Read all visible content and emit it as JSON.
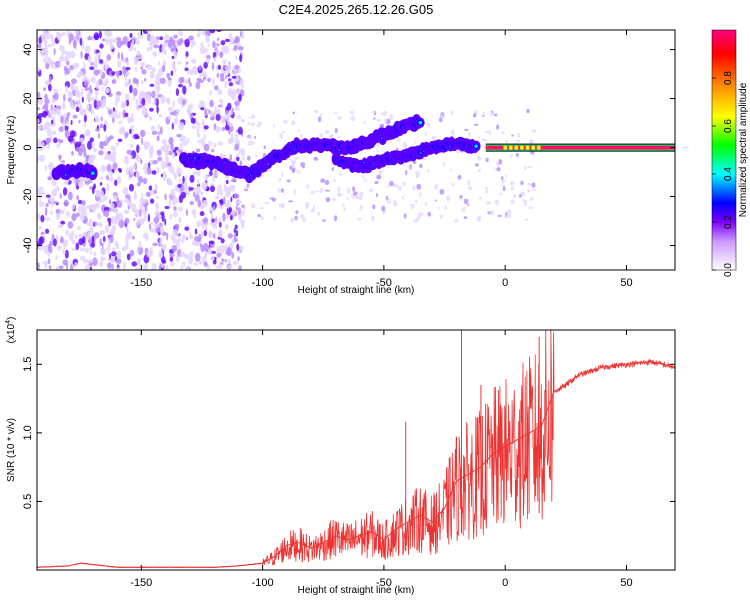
{
  "chart_data": [
    {
      "type": "heatmap",
      "title": "C2E4.2025.265.12.26.G05",
      "xlabel": "Height of straight line (km)",
      "ylabel": "Frequency (Hz)",
      "xlim": [
        -193,
        70
      ],
      "ylim": [
        -50,
        48
      ],
      "x_ticks": [
        -150,
        -100,
        -50,
        0,
        50
      ],
      "y_ticks": [
        -40,
        -20,
        0,
        20,
        40
      ],
      "colorbar": {
        "label": "Normalized spectral amplitude",
        "range": [
          0,
          1
        ],
        "ticks": [
          "0.0",
          "0.2",
          "0.4",
          "0.6",
          "0.8"
        ],
        "colors": [
          "#ffffff",
          "#cc99ff",
          "#7b00ff",
          "#0000ff",
          "#00ffff",
          "#00ff00",
          "#ffff00",
          "#ff8000",
          "#ff0000",
          "#ff0080"
        ]
      },
      "features": [
        {
          "name": "noise-scatter",
          "x_range": [
            -193,
            -108
          ],
          "y_range": [
            -50,
            48
          ]
        },
        {
          "name": "low-altitude-line",
          "x": [
            -185,
            -180,
            -175,
            -170
          ],
          "y": [
            -10,
            -10,
            -9,
            -10
          ]
        },
        {
          "name": "upper-branch",
          "x": [
            -133,
            -120,
            -105,
            -95,
            -85,
            -75,
            -65,
            -55,
            -45,
            -40,
            -35
          ],
          "y": [
            -5,
            -6,
            -11,
            -4,
            1,
            1,
            0,
            3,
            7,
            9,
            11
          ]
        },
        {
          "name": "lower-branch",
          "x": [
            -70,
            -60,
            -50,
            -40,
            -30,
            -20,
            -12
          ],
          "y": [
            -5,
            -8,
            -5,
            -3,
            0,
            2,
            0
          ]
        },
        {
          "name": "steady-carrier",
          "x": [
            -8,
            0,
            10,
            20,
            40,
            70
          ],
          "y": [
            0,
            0,
            0,
            0,
            0,
            0
          ]
        }
      ]
    },
    {
      "type": "line",
      "title": "",
      "xlabel": "Height of straight line (km)",
      "ylabel": "SNR (10 * v/v)",
      "scale_label": "(x10",
      "scale_exponent": "4",
      "scale_suffix": ")",
      "xlim": [
        -193,
        70
      ],
      "ylim": [
        0,
        1.75
      ],
      "x_ticks": [
        -150,
        -100,
        -50,
        0,
        50
      ],
      "y_ticks": [
        0.5,
        1.0,
        1.5
      ],
      "y_tick_labels": [
        "0.5",
        "1.0",
        "1.5"
      ],
      "color": "#ee3333",
      "series": [
        {
          "name": "SNR",
          "x": [
            -193,
            -180,
            -175,
            -160,
            -140,
            -120,
            -110,
            -100,
            -95,
            -90,
            -85,
            -80,
            -75,
            -70,
            -65,
            -60,
            -55,
            -50,
            -45,
            -40,
            -35,
            -30,
            -25,
            -20,
            -15,
            -10,
            -5,
            0,
            5,
            10,
            15,
            20,
            25,
            30,
            40,
            50,
            60,
            70
          ],
          "y": [
            0.02,
            0.03,
            0.05,
            0.02,
            0.02,
            0.02,
            0.03,
            0.05,
            0.1,
            0.18,
            0.2,
            0.16,
            0.2,
            0.25,
            0.22,
            0.25,
            0.28,
            0.22,
            0.3,
            0.35,
            0.4,
            0.35,
            0.45,
            0.65,
            0.7,
            0.75,
            0.85,
            0.9,
            0.95,
            1.0,
            1.05,
            1.3,
            1.35,
            1.42,
            1.48,
            1.5,
            1.52,
            1.48
          ]
        }
      ],
      "spikes": [
        {
          "x": -41,
          "y": 1.08
        },
        {
          "x": -18,
          "y": 1.75
        },
        {
          "x": -10,
          "y": 1.35
        },
        {
          "x": 14,
          "y": 1.7
        }
      ]
    }
  ]
}
